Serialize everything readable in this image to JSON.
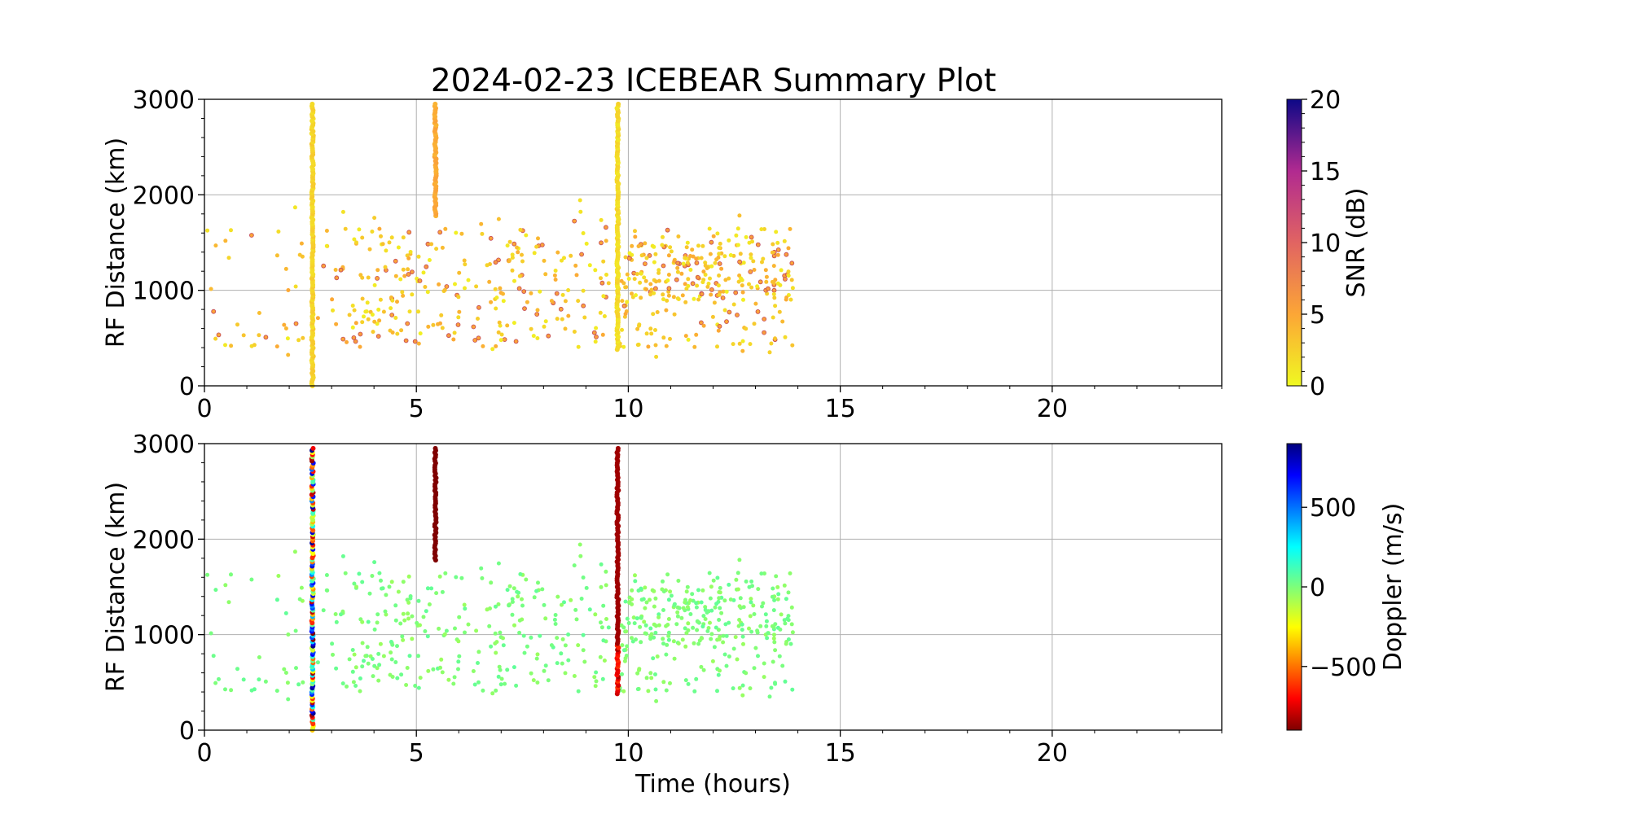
{
  "title": "2024-02-23 ICEBEAR Summary Plot",
  "chart_data": [
    {
      "type": "scatter",
      "panel": "top",
      "title": "2024-02-23 ICEBEAR Summary Plot",
      "xlabel": "",
      "ylabel": "RF Distance (km)",
      "xlim": [
        0,
        24
      ],
      "ylim": [
        0,
        3000
      ],
      "x_ticks": [
        "0",
        "5",
        "10",
        "15",
        "20"
      ],
      "y_ticks": [
        "0",
        "1000",
        "2000",
        "3000"
      ],
      "grid": true,
      "color_variable": "SNR",
      "colorbar": {
        "label": "SNR (dB)",
        "colormap": "plasma_r",
        "range": [
          0,
          20
        ],
        "ticks": [
          "0",
          "5",
          "10",
          "15",
          "20"
        ]
      },
      "streaks": [
        {
          "x": 2.55,
          "y_range": [
            0,
            2950
          ],
          "value_dB": 1.5
        },
        {
          "x": 5.45,
          "y_range": [
            1780,
            2950
          ],
          "value_dB": 4
        },
        {
          "x": 9.75,
          "y_range": [
            380,
            2950
          ],
          "value_dB": 1
        }
      ],
      "scatter_cloud": {
        "x_range": [
          0,
          14
        ],
        "y_range": [
          300,
          1950
        ],
        "typical_snr_dB": [
          1,
          6
        ]
      }
    },
    {
      "type": "scatter",
      "panel": "bottom",
      "xlabel": "Time (hours)",
      "ylabel": "RF Distance (km)",
      "xlim": [
        0,
        24
      ],
      "ylim": [
        0,
        3000
      ],
      "x_ticks": [
        "0",
        "5",
        "10",
        "15",
        "20"
      ],
      "y_ticks": [
        "0",
        "1000",
        "2000",
        "3000"
      ],
      "grid": true,
      "color_variable": "Doppler",
      "colorbar": {
        "label": "Doppler (m/s)",
        "colormap": "jet_r",
        "range": [
          -900,
          900
        ],
        "ticks": [
          "−500",
          "0",
          "500"
        ],
        "tick_values": [
          -500,
          0,
          500
        ]
      },
      "streaks": [
        {
          "x": 2.55,
          "y_range": [
            0,
            2950
          ],
          "doppler_ms": "mixed"
        },
        {
          "x": 5.45,
          "y_range": [
            1780,
            2950
          ],
          "doppler_ms": -900
        },
        {
          "x": 9.75,
          "y_range": [
            380,
            2950
          ],
          "doppler_ms": -850
        }
      ],
      "scatter_cloud": {
        "x_range": [
          0,
          14
        ],
        "y_range": [
          300,
          1950
        ],
        "typical_doppler_ms": 0
      }
    }
  ]
}
